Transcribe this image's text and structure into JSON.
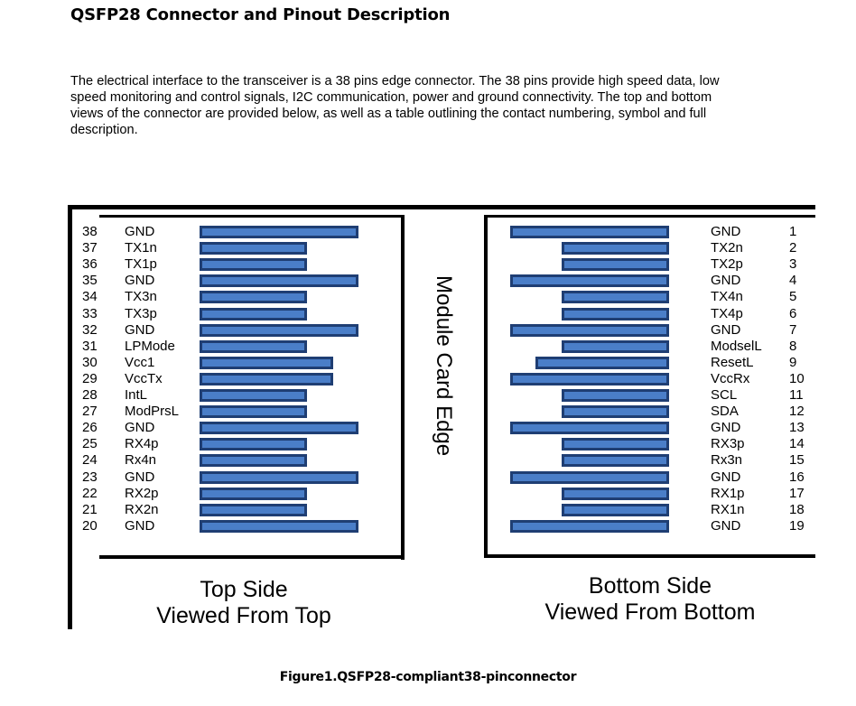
{
  "header": {
    "title": "QSFP28 Connector and Pinout Description",
    "intro": "The electrical interface to the transceiver is a 38 pins edge connector. The 38 pins provide high speed data, low speed monitoring and control signals, I2C communication, power and ground connectivity. The top and bottom views of the connector are provided below, as well as a table outlining the contact numbering, symbol and full description."
  },
  "diagram": {
    "edge_label": "Module Card Edge",
    "top_side": {
      "label_line1": "Top Side",
      "label_line2": "Viewed From Top",
      "pins": [
        {
          "num": "38",
          "sym": "GND",
          "pad": "long"
        },
        {
          "num": "37",
          "sym": "TX1n",
          "pad": "short"
        },
        {
          "num": "36",
          "sym": "TX1p",
          "pad": "short"
        },
        {
          "num": "35",
          "sym": "GND",
          "pad": "long"
        },
        {
          "num": "34",
          "sym": "TX3n",
          "pad": "short"
        },
        {
          "num": "33",
          "sym": "TX3p",
          "pad": "short"
        },
        {
          "num": "32",
          "sym": "GND",
          "pad": "long"
        },
        {
          "num": "31",
          "sym": "LPMode",
          "pad": "short"
        },
        {
          "num": "30",
          "sym": "Vcc1",
          "pad": "medium"
        },
        {
          "num": "29",
          "sym": "VccTx",
          "pad": "medium"
        },
        {
          "num": "28",
          "sym": "IntL",
          "pad": "short"
        },
        {
          "num": "27",
          "sym": "ModPrsL",
          "pad": "short"
        },
        {
          "num": "26",
          "sym": "GND",
          "pad": "long"
        },
        {
          "num": "25",
          "sym": "RX4p",
          "pad": "short"
        },
        {
          "num": "24",
          "sym": "Rx4n",
          "pad": "short"
        },
        {
          "num": "23",
          "sym": "GND",
          "pad": "long"
        },
        {
          "num": "22",
          "sym": "RX2p",
          "pad": "short"
        },
        {
          "num": "21",
          "sym": "RX2n",
          "pad": "short"
        },
        {
          "num": "20",
          "sym": "GND",
          "pad": "long"
        }
      ]
    },
    "bottom_side": {
      "label_line1": "Bottom Side",
      "label_line2": "Viewed From Bottom",
      "pins": [
        {
          "num": "1",
          "sym": "GND",
          "pad": "long"
        },
        {
          "num": "2",
          "sym": "TX2n",
          "pad": "short"
        },
        {
          "num": "3",
          "sym": "TX2p",
          "pad": "short"
        },
        {
          "num": "4",
          "sym": "GND",
          "pad": "long"
        },
        {
          "num": "5",
          "sym": "TX4n",
          "pad": "short"
        },
        {
          "num": "6",
          "sym": "TX4p",
          "pad": "short"
        },
        {
          "num": "7",
          "sym": "GND",
          "pad": "long"
        },
        {
          "num": "8",
          "sym": "ModselL",
          "pad": "short"
        },
        {
          "num": "9",
          "sym": "ResetL",
          "pad": "medium"
        },
        {
          "num": "10",
          "sym": "VccRx",
          "pad": "long"
        },
        {
          "num": "11",
          "sym": "SCL",
          "pad": "short"
        },
        {
          "num": "12",
          "sym": "SDA",
          "pad": "short"
        },
        {
          "num": "13",
          "sym": "GND",
          "pad": "long"
        },
        {
          "num": "14",
          "sym": "RX3p",
          "pad": "short"
        },
        {
          "num": "15",
          "sym": "Rx3n",
          "pad": "short"
        },
        {
          "num": "16",
          "sym": "GND",
          "pad": "long"
        },
        {
          "num": "17",
          "sym": "RX1p",
          "pad": "short"
        },
        {
          "num": "18",
          "sym": "RX1n",
          "pad": "short"
        },
        {
          "num": "19",
          "sym": "GND",
          "pad": "long"
        }
      ]
    },
    "pad_color": "#4a7ec8",
    "pad_border_color": "#1f3e73"
  },
  "caption": "Figure1.QSFP28-compliant38-pinconnector"
}
